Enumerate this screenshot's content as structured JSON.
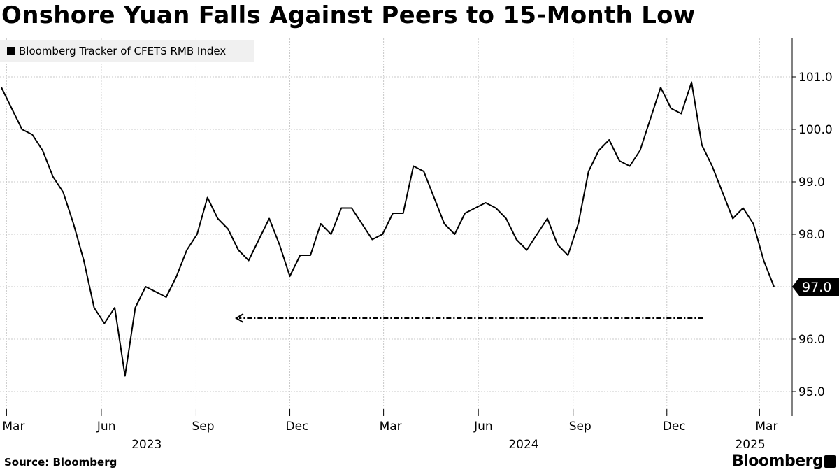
{
  "title": "Onshore Yuan Falls Against Peers to 15-Month Low",
  "source": "Source:  Bloomberg",
  "brand": "Bloomberg",
  "chart_data": {
    "type": "line",
    "title": "Onshore Yuan Falls Against Peers to 15-Month Low",
    "legend_position": "top-left",
    "grid": true,
    "ylim": [
      94.5,
      101.6
    ],
    "yticks": [
      95.0,
      96.0,
      97.0,
      98.0,
      99.0,
      100.0,
      101.0
    ],
    "ytick_labels": [
      "95.0",
      "96.0",
      "97.0",
      "98.0",
      "99.0",
      "100.0",
      "101.0"
    ],
    "xticks": [
      {
        "label": "Mar",
        "date": "2023-03-01"
      },
      {
        "label": "Jun",
        "date": "2023-06-01"
      },
      {
        "label": "Sep",
        "date": "2023-09-01"
      },
      {
        "label": "Dec",
        "date": "2023-12-01"
      },
      {
        "label": "Mar",
        "date": "2024-03-01"
      },
      {
        "label": "Jun",
        "date": "2024-06-01"
      },
      {
        "label": "Sep",
        "date": "2024-09-01"
      },
      {
        "label": "Dec",
        "date": "2024-12-01"
      },
      {
        "label": "Mar",
        "date": "2025-03-01"
      }
    ],
    "year_labels": [
      {
        "label": "2023",
        "date": "2023-07-15"
      },
      {
        "label": "2024",
        "date": "2024-07-15"
      },
      {
        "label": "2025",
        "date": "2025-02-20"
      }
    ],
    "last_value_label": "97.0",
    "series": [
      {
        "name": "Bloomberg Tracker of CFETS RMB Index",
        "color": "#000000",
        "x": [
          "2023-02-24",
          "2023-03-06",
          "2023-03-16",
          "2023-03-26",
          "2023-04-05",
          "2023-04-15",
          "2023-04-25",
          "2023-05-05",
          "2023-05-15",
          "2023-05-25",
          "2023-06-04",
          "2023-06-14",
          "2023-06-24",
          "2023-07-04",
          "2023-07-14",
          "2023-07-24",
          "2023-08-03",
          "2023-08-13",
          "2023-08-23",
          "2023-09-02",
          "2023-09-12",
          "2023-09-22",
          "2023-10-02",
          "2023-10-12",
          "2023-10-22",
          "2023-11-01",
          "2023-11-11",
          "2023-11-21",
          "2023-12-01",
          "2023-12-11",
          "2023-12-21",
          "2023-12-31",
          "2024-01-10",
          "2024-01-20",
          "2024-01-30",
          "2024-02-09",
          "2024-02-19",
          "2024-02-29",
          "2024-03-10",
          "2024-03-20",
          "2024-03-30",
          "2024-04-09",
          "2024-04-19",
          "2024-04-29",
          "2024-05-09",
          "2024-05-19",
          "2024-05-29",
          "2024-06-08",
          "2024-06-18",
          "2024-06-28",
          "2024-07-08",
          "2024-07-18",
          "2024-07-28",
          "2024-08-07",
          "2024-08-17",
          "2024-08-27",
          "2024-09-06",
          "2024-09-16",
          "2024-09-26",
          "2024-10-06",
          "2024-10-16",
          "2024-10-26",
          "2024-11-05",
          "2024-11-15",
          "2024-11-25",
          "2024-12-05",
          "2024-12-15",
          "2024-12-25",
          "2025-01-04",
          "2025-01-14",
          "2025-01-24",
          "2025-02-03",
          "2025-02-13",
          "2025-02-23",
          "2025-03-05",
          "2025-03-15"
        ],
        "y": [
          100.8,
          100.4,
          100.0,
          99.9,
          99.6,
          99.1,
          98.8,
          98.2,
          97.5,
          96.6,
          96.3,
          96.6,
          95.3,
          96.6,
          97.0,
          96.9,
          96.8,
          97.2,
          97.7,
          98.0,
          98.7,
          98.3,
          98.1,
          97.7,
          97.5,
          97.9,
          98.3,
          97.8,
          97.2,
          97.6,
          97.6,
          98.2,
          98.0,
          98.5,
          98.5,
          98.2,
          97.9,
          98.0,
          98.4,
          98.4,
          99.3,
          99.2,
          98.7,
          98.2,
          98.0,
          98.4,
          98.5,
          98.6,
          98.5,
          98.3,
          97.9,
          97.7,
          98.0,
          98.3,
          97.8,
          97.6,
          98.2,
          99.2,
          99.6,
          99.8,
          99.4,
          99.3,
          99.6,
          100.2,
          100.8,
          100.4,
          100.3,
          100.9,
          99.7,
          99.3,
          98.8,
          98.3,
          98.5,
          98.2,
          97.5,
          97.0
        ]
      }
    ],
    "annotations": [
      {
        "type": "dashed-arrow",
        "direction": "left",
        "y": 96.4,
        "x_from": "2025-01-05",
        "x_to": "2023-10-10"
      }
    ]
  }
}
